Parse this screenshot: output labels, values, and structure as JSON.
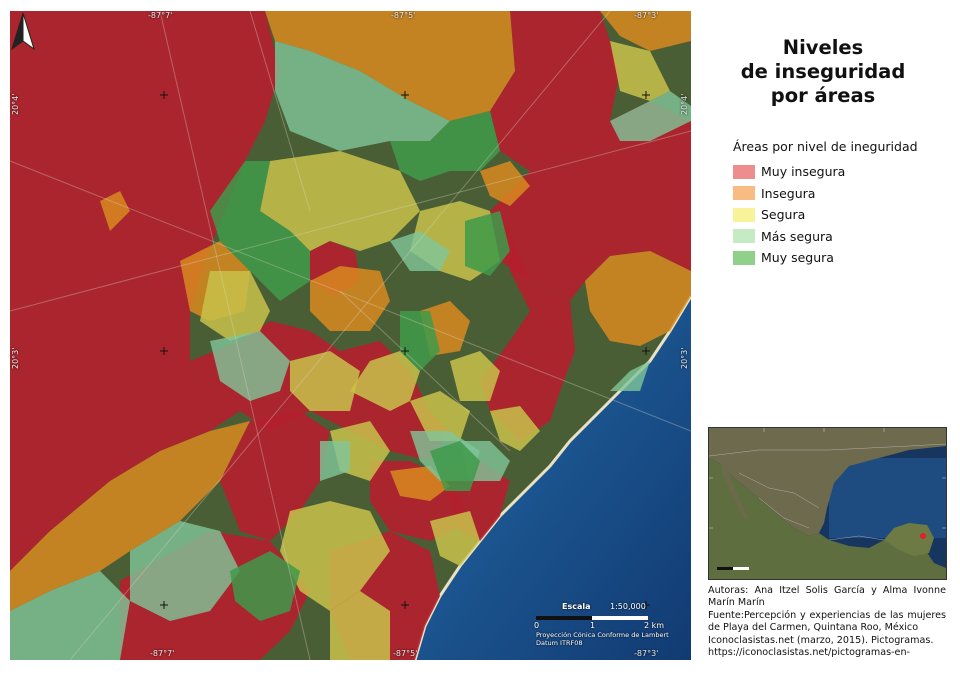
{
  "title": {
    "line1": "Niveles",
    "line2": "de inseguridad",
    "line3": "por áreas"
  },
  "legend": {
    "heading": "Áreas por nivel de ineguridad",
    "items": [
      {
        "label": "Muy insegura",
        "color": "#ee8d8d"
      },
      {
        "label": "Insegura",
        "color": "#f8bb82"
      },
      {
        "label": "Segura",
        "color": "#f6f39a"
      },
      {
        "label": "Más segura",
        "color": "#c6ebc4"
      },
      {
        "label": "Muy segura",
        "color": "#8fd08a"
      }
    ]
  },
  "map": {
    "zone_colors": {
      "muy_insegura": "#b51f2d",
      "insegura": "#d98a1e",
      "segura": "#c8c24a",
      "mas_segura": "#7fc59a",
      "muy_segura": "#3f9a4a",
      "sea_deep": "#153e78",
      "sea_shallow": "#4aa3c2"
    },
    "coords": {
      "top": [
        "-87°7'",
        "-87°5'",
        "-87°3'"
      ],
      "bottom": [
        "-87°7'",
        "-87°5'",
        "-87°3'"
      ],
      "left": [
        "20°4'",
        "20°3'"
      ],
      "right": [
        "20°4'",
        "20°3'"
      ]
    },
    "scale": {
      "title": "Escala",
      "ratio": "1:50,000",
      "ticks": [
        "0",
        "1",
        "2 km"
      ],
      "projection": "Proyección Cónica Conforme de Lambert",
      "datum": "Datum ITRF08"
    }
  },
  "credits": {
    "authors": "Autoras: Ana Itzel Solis García y Alma Ivonne Marín Marín",
    "source": "Fuente:Percepción y experiencias de las mujeres de Playa del Carmen, Quintana Roo, México",
    "pictos": "Iconoclasistas.net (marzo, 2015). Pictogramas.",
    "url": "https://iconoclasistas.net/pictogramas-en-"
  }
}
